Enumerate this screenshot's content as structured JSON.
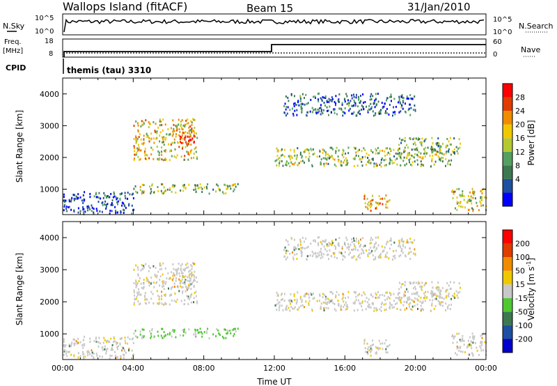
{
  "header": {
    "station": "Wallops Island (fitACF)",
    "beam": "Beam 15",
    "date": "31/Jan/2010"
  },
  "top_panels": {
    "nsky_label": "N.Sky",
    "nsky_ticks": [
      "10^5",
      "10^0"
    ],
    "nsearch_label": "N.Search",
    "nsearch_ticks": [
      "10^5",
      "10^0"
    ],
    "freq_label_1": "Freq.",
    "freq_label_2": "[MHz]",
    "freq_ticks": [
      "18",
      "8"
    ],
    "nave_label": "Nave",
    "nave_ticks": [
      "60",
      "0"
    ],
    "cpid_label": "CPID",
    "cpid_value": "themis (tau) 3310"
  },
  "chart_data": [
    {
      "type": "heatmap",
      "name": "power",
      "ylabel": "Slant Range [km]",
      "xlabel": "Time UT",
      "ylim": [
        200,
        4500
      ],
      "xlim": [
        0,
        24
      ],
      "yticks": [
        "1000",
        "2000",
        "3000",
        "4000"
      ],
      "colorbar_label": "Power [dB]",
      "colorbar_ticks": [
        "28",
        "24",
        "20",
        "16",
        "12",
        "8",
        "4"
      ],
      "colors": [
        "#0000ff",
        "#1e50a0",
        "#3c7850",
        "#55a060",
        "#b4c832",
        "#f0c800",
        "#f08c00",
        "#e03c00",
        "#ff0000"
      ],
      "regions": [
        {
          "t": [
            4.0,
            7.6
          ],
          "r": [
            1900,
            3200
          ],
          "level": 0.6
        },
        {
          "t": [
            6.6,
            7.5
          ],
          "r": [
            2300,
            2700
          ],
          "level": 0.95
        },
        {
          "t": [
            4.0,
            9.9
          ],
          "r": [
            850,
            1150
          ],
          "level": 0.45
        },
        {
          "t": [
            0.0,
            4.0
          ],
          "r": [
            200,
            900
          ],
          "level": 0.15
        },
        {
          "t": [
            12.0,
            22.0
          ],
          "r": [
            1700,
            2300
          ],
          "level": 0.45
        },
        {
          "t": [
            19.0,
            22.5
          ],
          "r": [
            2100,
            2600
          ],
          "level": 0.4
        },
        {
          "t": [
            17.0,
            18.5
          ],
          "r": [
            300,
            800
          ],
          "level": 0.7
        },
        {
          "t": [
            22.0,
            24.0
          ],
          "r": [
            300,
            1000
          ],
          "level": 0.55
        },
        {
          "t": [
            12.5,
            20.0
          ],
          "r": [
            3300,
            4000
          ],
          "level": 0.2
        }
      ]
    },
    {
      "type": "heatmap",
      "name": "velocity",
      "ylabel": "Slant Range [km]",
      "xlabel": "Time UT",
      "ylim": [
        200,
        4500
      ],
      "xlim": [
        0,
        24
      ],
      "yticks": [
        "1000",
        "2000",
        "3000",
        "4000"
      ],
      "xticks": [
        "00:00",
        "04:00",
        "08:00",
        "12:00",
        "16:00",
        "20:00",
        "00:00"
      ],
      "colorbar_label_main": "Velocity [m s",
      "colorbar_label_sup": "-1",
      "colorbar_label_end": "]",
      "colorbar_ticks": [
        "200",
        "100",
        "50",
        "15",
        "-15",
        "-50",
        "-100",
        "-200"
      ],
      "colors": [
        "#0000cc",
        "#1e50a0",
        "#3c7850",
        "#50c832",
        "#c8c8c8",
        "#f0c800",
        "#f08c00",
        "#e03c00",
        "#ff0000"
      ]
    }
  ]
}
